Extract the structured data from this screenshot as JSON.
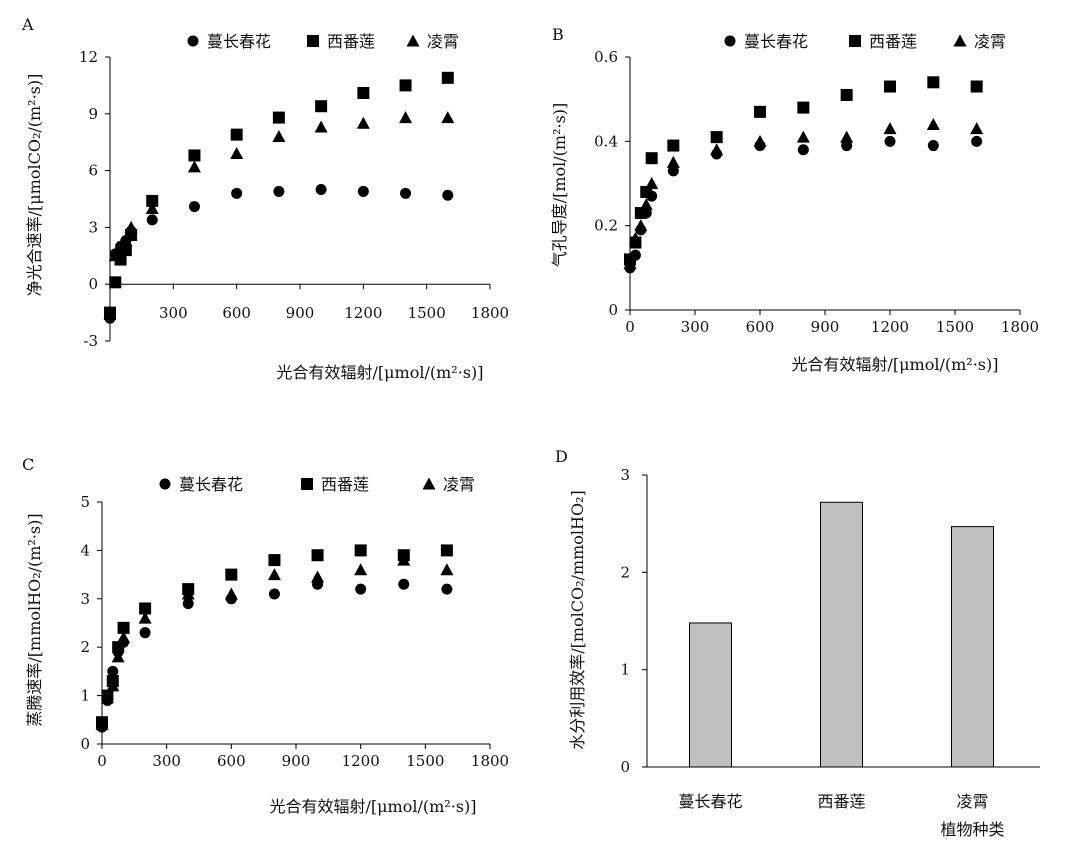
{
  "chart_data": [
    {
      "panel": "A",
      "type": "scatter",
      "xlabel": "光合有效辐射/[μmol/(m²·s)]",
      "ylabel": "净光合速率/[μmolCO₂/(m²·s)]",
      "xlim": [
        0,
        1800
      ],
      "ylim": [
        -3,
        12
      ],
      "xticks": [
        300,
        600,
        900,
        1200,
        1500,
        1800
      ],
      "yticks": [
        -3,
        0,
        3,
        6,
        9,
        12
      ],
      "legend_position": "top",
      "x": [
        0,
        25,
        50,
        75,
        100,
        200,
        400,
        600,
        800,
        1000,
        1200,
        1400,
        1600
      ],
      "series": [
        {
          "name": "蔓长春花",
          "marker": "circle",
          "values": [
            -1.8,
            1.6,
            2.0,
            2.3,
            2.8,
            3.4,
            4.1,
            4.8,
            4.9,
            5.0,
            4.9,
            4.8,
            4.7
          ]
        },
        {
          "name": "西番莲",
          "marker": "square",
          "values": [
            -1.5,
            0.1,
            1.3,
            1.8,
            2.6,
            4.4,
            6.8,
            7.9,
            8.8,
            9.4,
            10.1,
            10.5,
            10.9
          ]
        },
        {
          "name": "凌霄",
          "marker": "triangle",
          "values": [
            -1.6,
            1.5,
            1.9,
            2.3,
            3.0,
            4.0,
            6.2,
            6.9,
            7.8,
            8.3,
            8.5,
            8.8,
            8.8
          ]
        }
      ]
    },
    {
      "panel": "B",
      "type": "scatter",
      "xlabel": "光合有效辐射/[μmol/(m²·s)]",
      "ylabel": "气孔导度/[mol/(m²·s)]",
      "xlim": [
        0,
        1800
      ],
      "ylim": [
        0,
        0.6
      ],
      "xticks": [
        0,
        300,
        600,
        900,
        1200,
        1500,
        1800
      ],
      "yticks": [
        0,
        0.2,
        0.4,
        0.6
      ],
      "legend_position": "top",
      "x": [
        0,
        25,
        50,
        75,
        100,
        200,
        400,
        600,
        800,
        1000,
        1200,
        1400,
        1600
      ],
      "series": [
        {
          "name": "蔓长春花",
          "marker": "circle",
          "values": [
            0.1,
            0.13,
            0.19,
            0.23,
            0.27,
            0.33,
            0.37,
            0.39,
            0.38,
            0.39,
            0.4,
            0.39,
            0.4
          ]
        },
        {
          "name": "西番莲",
          "marker": "square",
          "values": [
            0.12,
            0.16,
            0.23,
            0.28,
            0.36,
            0.39,
            0.41,
            0.47,
            0.48,
            0.51,
            0.53,
            0.54,
            0.53
          ]
        },
        {
          "name": "凌霄",
          "marker": "triangle",
          "values": [
            0.11,
            0.17,
            0.2,
            0.25,
            0.3,
            0.35,
            0.38,
            0.4,
            0.41,
            0.41,
            0.43,
            0.44,
            0.43
          ]
        }
      ]
    },
    {
      "panel": "C",
      "type": "scatter",
      "xlabel": "光合有效辐射/[μmol/(m²·s)]",
      "ylabel": "蒸腾速率/[mmolHO₂/(m²·s)]",
      "xlim": [
        0,
        1800
      ],
      "ylim": [
        0,
        5
      ],
      "xticks": [
        0,
        300,
        600,
        900,
        1200,
        1500,
        1800
      ],
      "yticks": [
        0,
        1,
        2,
        3,
        4,
        5
      ],
      "legend_position": "top",
      "x": [
        0,
        25,
        50,
        75,
        100,
        200,
        400,
        600,
        800,
        1000,
        1200,
        1400,
        1600
      ],
      "series": [
        {
          "name": "蔓长春花",
          "marker": "circle",
          "values": [
            0.35,
            0.9,
            1.5,
            1.9,
            2.1,
            2.3,
            2.9,
            3.0,
            3.1,
            3.3,
            3.2,
            3.3,
            3.2
          ]
        },
        {
          "name": "西番莲",
          "marker": "square",
          "values": [
            0.45,
            1.0,
            1.3,
            2.0,
            2.4,
            2.8,
            3.2,
            3.5,
            3.8,
            3.9,
            4.0,
            3.9,
            4.0
          ]
        },
        {
          "name": "凌霄",
          "marker": "triangle",
          "values": [
            0.4,
            0.95,
            1.2,
            1.8,
            2.2,
            2.6,
            3.1,
            3.1,
            3.5,
            3.45,
            3.6,
            3.8,
            3.6
          ]
        }
      ]
    },
    {
      "panel": "D",
      "type": "bar",
      "xlabel": "植物种类",
      "ylabel": "水分利用效率/[molCO₂/mmolHO₂]",
      "ylim": [
        0,
        3
      ],
      "yticks": [
        0,
        1,
        2,
        3
      ],
      "categories": [
        "蔓长春花",
        "西番莲",
        "凌霄"
      ],
      "values": [
        1.48,
        2.72,
        2.47
      ],
      "bar_color": "#c0c0c0"
    }
  ]
}
